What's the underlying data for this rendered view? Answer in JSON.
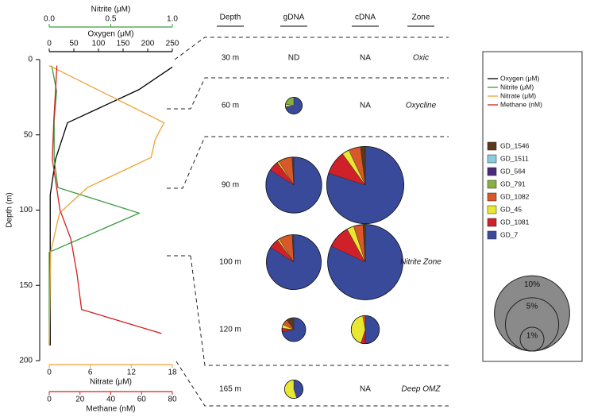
{
  "chart_data": [
    {
      "type": "line",
      "ylabel": "Depth (m)",
      "ylim": [
        0,
        200
      ],
      "yticks": [
        0,
        50,
        100,
        150,
        200
      ],
      "series": [
        {
          "name": "Oxygen (μM)",
          "color": "#000000",
          "xlabel": "Oxygen (μM)",
          "axis_side": "top",
          "xlim": [
            0,
            250
          ],
          "xticks": [
            0,
            50,
            100,
            150,
            200,
            250
          ],
          "depth": [
            5,
            20,
            42,
            66,
            90,
            190
          ],
          "values": [
            250,
            182,
            37,
            13,
            2,
            2
          ]
        },
        {
          "name": "Nitrite (μM)",
          "color": "#3c9a3c",
          "xlabel": "Nitrite (μM)",
          "axis_side": "top",
          "xlim": [
            0,
            1
          ],
          "xticks": [
            {
              "value": 0,
              "label": "0.0"
            },
            0.5,
            {
              "value": 1,
              "label": "1.0"
            }
          ],
          "depth": [
            4,
            21,
            40,
            66,
            85,
            102,
            128,
            190
          ],
          "values": [
            0.02,
            0.06,
            0.04,
            0.04,
            0.07,
            0.73,
            0,
            0
          ]
        },
        {
          "name": "Nitrate (μM)",
          "color": "#f0a030",
          "xlabel": "Nitrate (μM)",
          "axis_side": "bottom",
          "xlim": [
            0,
            18
          ],
          "xticks": [
            0,
            6,
            12,
            18
          ],
          "depth": [
            4,
            42,
            53,
            65,
            85,
            102,
            128,
            190
          ],
          "values": [
            0,
            16.8,
            15.5,
            14.9,
            5.6,
            1.5,
            0.2,
            0
          ]
        },
        {
          "name": "Methane (nM)",
          "color": "#d42020",
          "xlabel": "Methane (nM)",
          "axis_side": "bottom",
          "xlim": [
            0,
            80
          ],
          "xticks": [
            0,
            20,
            40,
            60,
            80
          ],
          "depth": [
            4,
            40,
            66,
            100,
            119,
            142,
            166,
            182
          ],
          "values": [
            5,
            3,
            2,
            7,
            14,
            18,
            21,
            73
          ]
        }
      ]
    },
    {
      "type": "pie",
      "columns": [
        "Depth",
        "gDNA",
        "cDNA",
        "Zone"
      ],
      "series": [
        {
          "name": "GD_1546",
          "color": "#5a3a1a"
        },
        {
          "name": "GD_1511",
          "color": "#88ccdd"
        },
        {
          "name": "GD_564",
          "color": "#4a2a7a"
        },
        {
          "name": "GD_791",
          "color": "#88b040"
        },
        {
          "name": "GD_1082",
          "color": "#d8582a"
        },
        {
          "name": "GD_45",
          "color": "#e8e830"
        },
        {
          "name": "GD_1081",
          "color": "#d0202a"
        },
        {
          "name": "GD_7",
          "color": "#3a4a9a"
        }
      ],
      "rows": [
        {
          "depth": "30 m",
          "gDNA": "ND",
          "cDNA": "NA",
          "zone": "Oxic"
        },
        {
          "depth": "60 m",
          "gDNA": {
            "size": 0.5,
            "values": [
              0,
              0,
              0,
              22,
              0,
              5,
              0,
              73
            ]
          },
          "cDNA": "NA",
          "zone": "Oxycline"
        },
        {
          "depth": "90 m",
          "gDNA": {
            "size": 5.5,
            "values": [
              1,
              0,
              0,
              0,
              8,
              1,
              6,
              84
            ]
          },
          "cDNA": {
            "size": 10.5,
            "values": [
              2,
              0,
              0,
              0,
              5,
              3,
              10,
              80
            ]
          }
        },
        {
          "depth": "100 m",
          "gDNA": {
            "size": 5.3,
            "values": [
              1,
              0,
              0,
              0,
              8,
              1,
              6,
              84
            ]
          },
          "cDNA": {
            "size": 10,
            "values": [
              1,
              0,
              0,
              0,
              4,
              3,
              10,
              82
            ]
          },
          "zone": "Nitrite Zone"
        },
        {
          "depth": "120 m",
          "gDNA": {
            "size": 1,
            "values": [
              10,
              0,
              0,
              0,
              8,
              5,
              5,
              72
            ]
          },
          "cDNA": {
            "size": 1.4,
            "values": [
              0,
              0,
              0,
              0,
              3,
              42,
              5,
              50
            ]
          }
        },
        {
          "depth": "165 m",
          "gDNA": {
            "size": 0.6,
            "values": [
              0,
              0,
              0,
              0,
              0,
              55,
              0,
              45
            ]
          },
          "cDNA": "NA",
          "zone": "Deep OMZ"
        }
      ],
      "size_legend": [
        {
          "value": 10,
          "label": "10%"
        },
        {
          "value": 5,
          "label": "5%"
        },
        {
          "value": 1,
          "label": "1%"
        }
      ]
    }
  ]
}
